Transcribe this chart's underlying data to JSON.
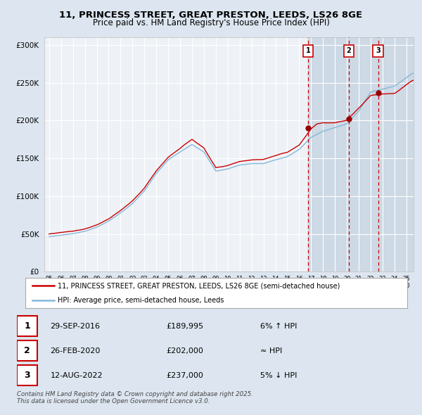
{
  "title_line1": "11, PRINCESS STREET, GREAT PRESTON, LEEDS, LS26 8GE",
  "title_line2": "Price paid vs. HM Land Registry's House Price Index (HPI)",
  "legend_red": "11, PRINCESS STREET, GREAT PRESTON, LEEDS, LS26 8GE (semi-detached house)",
  "legend_blue": "HPI: Average price, semi-detached house, Leeds",
  "transactions": [
    {
      "num": 1,
      "date": "29-SEP-2016",
      "price": "£189,995",
      "rel": "6% ↑ HPI",
      "year": 2016.75
    },
    {
      "num": 2,
      "date": "26-FEB-2020",
      "price": "£202,000",
      "rel": "≈ HPI",
      "year": 2020.15
    },
    {
      "num": 3,
      "date": "12-AUG-2022",
      "price": "£237,000",
      "rel": "5% ↓ HPI",
      "year": 2022.62
    }
  ],
  "t_prices": [
    189995,
    202000,
    237000
  ],
  "footer": "Contains HM Land Registry data © Crown copyright and database right 2025.\nThis data is licensed under the Open Government Licence v3.0.",
  "bg_color": "#dde6f0",
  "plot_bg": "#eef2f7",
  "red_color": "#cc0000",
  "blue_color": "#85b8d8",
  "shade_color": "#cdd9e5",
  "ylim": [
    0,
    310000
  ],
  "yticks": [
    0,
    50000,
    100000,
    150000,
    200000,
    250000,
    300000
  ],
  "xlim_start": 1994.6,
  "xlim_end": 2025.6,
  "xtick_years": [
    1995,
    1996,
    1997,
    1998,
    1999,
    2000,
    2001,
    2002,
    2003,
    2004,
    2005,
    2006,
    2007,
    2008,
    2009,
    2010,
    2011,
    2012,
    2013,
    2014,
    2015,
    2016,
    2017,
    2018,
    2019,
    2020,
    2021,
    2022,
    2023,
    2024,
    2025
  ]
}
